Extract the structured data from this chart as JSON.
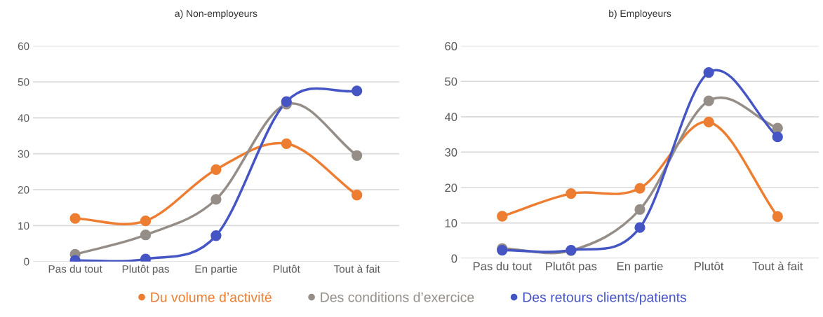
{
  "chart_data": [
    {
      "type": "line",
      "title": "a) Non-employeurs",
      "categories": [
        "Pas du tout",
        "Plutôt pas",
        "En partie",
        "Plutôt",
        "Tout à fait"
      ],
      "ylim": [
        0,
        60
      ],
      "yticks": [
        0,
        10,
        20,
        30,
        40,
        50,
        60
      ],
      "grid": "y",
      "marker": "circle",
      "line_style": "solid",
      "series": [
        {
          "color": "#ed7d31",
          "values": [
            12,
            11.3,
            25.6,
            32.8,
            18.5
          ]
        },
        {
          "color": "#958e88",
          "values": [
            2,
            7.4,
            17.3,
            43.8,
            29.5
          ]
        },
        {
          "color": "#4655c4",
          "values": [
            0.3,
            0.7,
            7.2,
            44.5,
            47.5
          ]
        }
      ]
    },
    {
      "type": "line",
      "title": "b) Employeurs",
      "categories": [
        "Pas du tout",
        "Plutôt pas",
        "En partie",
        "Plutôt",
        "Tout à fait"
      ],
      "ylim": [
        0,
        60
      ],
      "yticks": [
        0,
        10,
        20,
        30,
        40,
        50,
        60
      ],
      "grid": "y",
      "marker": "circle",
      "line_style": "solid",
      "legend": "bottom",
      "series": [
        {
          "name": "Du volume d’activité",
          "color": "#ed7d31",
          "values": [
            11.9,
            18.3,
            19.8,
            38.5,
            11.8
          ]
        },
        {
          "name": "Des conditions d’exercice",
          "color": "#958e88",
          "values": [
            2.8,
            2.2,
            13.8,
            44.5,
            36.8
          ]
        },
        {
          "name": "Des retours clients/patients",
          "color": "#4655c4",
          "values": [
            2.3,
            2.3,
            8.7,
            52.5,
            34.3
          ]
        }
      ]
    }
  ]
}
